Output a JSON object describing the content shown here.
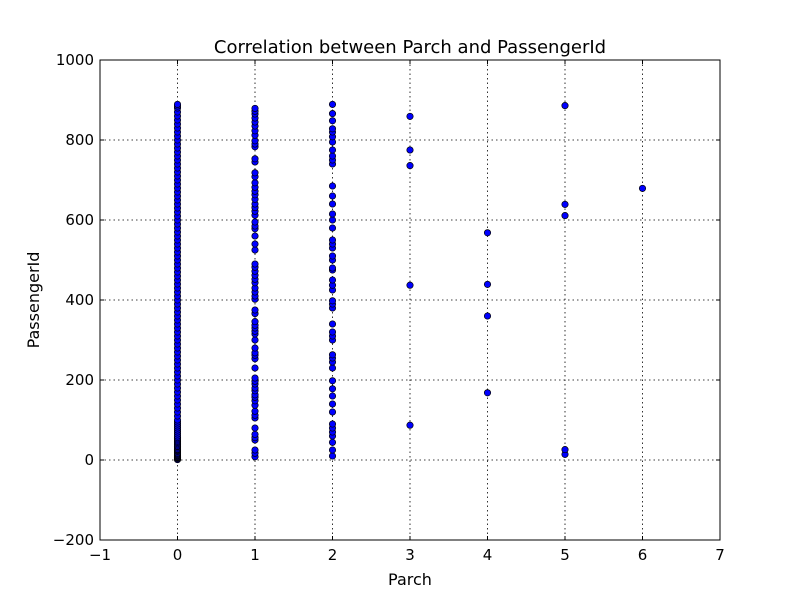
{
  "chart_data": {
    "type": "scatter",
    "title": "Correlation between Parch and PassengerId",
    "xlabel": "Parch",
    "ylabel": "PassengerId",
    "xlim": [
      -1,
      7
    ],
    "ylim": [
      -200,
      1000
    ],
    "xticks": [
      -1,
      0,
      1,
      2,
      3,
      4,
      5,
      6,
      7
    ],
    "yticks": [
      -200,
      0,
      200,
      400,
      600,
      800,
      1000
    ],
    "xtick_labels": [
      "−1",
      "0",
      "1",
      "2",
      "3",
      "4",
      "5",
      "6",
      "7"
    ],
    "ytick_labels": [
      "−200",
      "0",
      "200",
      "400",
      "600",
      "800",
      "1000"
    ],
    "grid": true,
    "marker_color": "#0000ff",
    "series": [
      {
        "points": [
          [
            0,
            1
          ],
          [
            0,
            3
          ],
          [
            0,
            5
          ],
          [
            0,
            6
          ],
          [
            0,
            7
          ],
          [
            0,
            8
          ],
          [
            0,
            10
          ],
          [
            0,
            12
          ],
          [
            0,
            14
          ],
          [
            0,
            16
          ],
          [
            0,
            18
          ],
          [
            0,
            21
          ],
          [
            0,
            23
          ],
          [
            0,
            25
          ],
          [
            0,
            27
          ],
          [
            0,
            30
          ],
          [
            0,
            33
          ],
          [
            0,
            35
          ],
          [
            0,
            38
          ],
          [
            0,
            41
          ],
          [
            0,
            44
          ],
          [
            0,
            47
          ],
          [
            0,
            50
          ],
          [
            0,
            53
          ],
          [
            0,
            56
          ],
          [
            0,
            60
          ],
          [
            0,
            65
          ],
          [
            0,
            70
          ],
          [
            0,
            75
          ],
          [
            0,
            80
          ],
          [
            0,
            85
          ],
          [
            0,
            90
          ],
          [
            0,
            95
          ],
          [
            0,
            100
          ],
          [
            0,
            110
          ],
          [
            0,
            120
          ],
          [
            0,
            130
          ],
          [
            0,
            140
          ],
          [
            0,
            150
          ],
          [
            0,
            160
          ],
          [
            0,
            170
          ],
          [
            0,
            180
          ],
          [
            0,
            190
          ],
          [
            0,
            200
          ],
          [
            0,
            210
          ],
          [
            0,
            220
          ],
          [
            0,
            230
          ],
          [
            0,
            240
          ],
          [
            0,
            250
          ],
          [
            0,
            260
          ],
          [
            0,
            270
          ],
          [
            0,
            280
          ],
          [
            0,
            290
          ],
          [
            0,
            300
          ],
          [
            0,
            310
          ],
          [
            0,
            320
          ],
          [
            0,
            330
          ],
          [
            0,
            340
          ],
          [
            0,
            350
          ],
          [
            0,
            360
          ],
          [
            0,
            370
          ],
          [
            0,
            380
          ],
          [
            0,
            390
          ],
          [
            0,
            400
          ],
          [
            0,
            410
          ],
          [
            0,
            420
          ],
          [
            0,
            430
          ],
          [
            0,
            440
          ],
          [
            0,
            450
          ],
          [
            0,
            460
          ],
          [
            0,
            470
          ],
          [
            0,
            480
          ],
          [
            0,
            490
          ],
          [
            0,
            500
          ],
          [
            0,
            510
          ],
          [
            0,
            520
          ],
          [
            0,
            530
          ],
          [
            0,
            540
          ],
          [
            0,
            550
          ],
          [
            0,
            560
          ],
          [
            0,
            570
          ],
          [
            0,
            580
          ],
          [
            0,
            590
          ],
          [
            0,
            600
          ],
          [
            0,
            610
          ],
          [
            0,
            620
          ],
          [
            0,
            630
          ],
          [
            0,
            640
          ],
          [
            0,
            650
          ],
          [
            0,
            660
          ],
          [
            0,
            670
          ],
          [
            0,
            680
          ],
          [
            0,
            690
          ],
          [
            0,
            700
          ],
          [
            0,
            710
          ],
          [
            0,
            720
          ],
          [
            0,
            730
          ],
          [
            0,
            740
          ],
          [
            0,
            750
          ],
          [
            0,
            760
          ],
          [
            0,
            770
          ],
          [
            0,
            780
          ],
          [
            0,
            790
          ],
          [
            0,
            800
          ],
          [
            0,
            810
          ],
          [
            0,
            820
          ],
          [
            0,
            830
          ],
          [
            0,
            840
          ],
          [
            0,
            850
          ],
          [
            0,
            860
          ],
          [
            0,
            870
          ],
          [
            0,
            880
          ],
          [
            0,
            885
          ],
          [
            0,
            889
          ],
          [
            1,
            8
          ],
          [
            1,
            17
          ],
          [
            1,
            25
          ],
          [
            1,
            50
          ],
          [
            1,
            56
          ],
          [
            1,
            64
          ],
          [
            1,
            80
          ],
          [
            1,
            105
          ],
          [
            1,
            112
          ],
          [
            1,
            122
          ],
          [
            1,
            137
          ],
          [
            1,
            148
          ],
          [
            1,
            157
          ],
          [
            1,
            163
          ],
          [
            1,
            173
          ],
          [
            1,
            180
          ],
          [
            1,
            190
          ],
          [
            1,
            197
          ],
          [
            1,
            205
          ],
          [
            1,
            230
          ],
          [
            1,
            253
          ],
          [
            1,
            262
          ],
          [
            1,
            268
          ],
          [
            1,
            280
          ],
          [
            1,
            300
          ],
          [
            1,
            315
          ],
          [
            1,
            322
          ],
          [
            1,
            330
          ],
          [
            1,
            337
          ],
          [
            1,
            346
          ],
          [
            1,
            366
          ],
          [
            1,
            375
          ],
          [
            1,
            402
          ],
          [
            1,
            410
          ],
          [
            1,
            420
          ],
          [
            1,
            430
          ],
          [
            1,
            443
          ],
          [
            1,
            452
          ],
          [
            1,
            462
          ],
          [
            1,
            472
          ],
          [
            1,
            482
          ],
          [
            1,
            490
          ],
          [
            1,
            525
          ],
          [
            1,
            540
          ],
          [
            1,
            560
          ],
          [
            1,
            578
          ],
          [
            1,
            585
          ],
          [
            1,
            595
          ],
          [
            1,
            612
          ],
          [
            1,
            622
          ],
          [
            1,
            631
          ],
          [
            1,
            640
          ],
          [
            1,
            652
          ],
          [
            1,
            663
          ],
          [
            1,
            672
          ],
          [
            1,
            682
          ],
          [
            1,
            693
          ],
          [
            1,
            708
          ],
          [
            1,
            718
          ],
          [
            1,
            745
          ],
          [
            1,
            753
          ],
          [
            1,
            783
          ],
          [
            1,
            790
          ],
          [
            1,
            798
          ],
          [
            1,
            812
          ],
          [
            1,
            823
          ],
          [
            1,
            835
          ],
          [
            1,
            845
          ],
          [
            1,
            855
          ],
          [
            1,
            865
          ],
          [
            1,
            872
          ],
          [
            1,
            879
          ],
          [
            2,
            10
          ],
          [
            2,
            25
          ],
          [
            2,
            44
          ],
          [
            2,
            60
          ],
          [
            2,
            70
          ],
          [
            2,
            80
          ],
          [
            2,
            90
          ],
          [
            2,
            120
          ],
          [
            2,
            140
          ],
          [
            2,
            160
          ],
          [
            2,
            178
          ],
          [
            2,
            198
          ],
          [
            2,
            230
          ],
          [
            2,
            245
          ],
          [
            2,
            255
          ],
          [
            2,
            263
          ],
          [
            2,
            300
          ],
          [
            2,
            310
          ],
          [
            2,
            320
          ],
          [
            2,
            340
          ],
          [
            2,
            380
          ],
          [
            2,
            390
          ],
          [
            2,
            398
          ],
          [
            2,
            425
          ],
          [
            2,
            437
          ],
          [
            2,
            450
          ],
          [
            2,
            475
          ],
          [
            2,
            480
          ],
          [
            2,
            500
          ],
          [
            2,
            510
          ],
          [
            2,
            530
          ],
          [
            2,
            540
          ],
          [
            2,
            550
          ],
          [
            2,
            580
          ],
          [
            2,
            600
          ],
          [
            2,
            615
          ],
          [
            2,
            640
          ],
          [
            2,
            660
          ],
          [
            2,
            685
          ],
          [
            2,
            740
          ],
          [
            2,
            750
          ],
          [
            2,
            760
          ],
          [
            2,
            775
          ],
          [
            2,
            795
          ],
          [
            2,
            808
          ],
          [
            2,
            820
          ],
          [
            2,
            828
          ],
          [
            2,
            848
          ],
          [
            2,
            866
          ],
          [
            2,
            889
          ],
          [
            3,
            87
          ],
          [
            3,
            437
          ],
          [
            3,
            736
          ],
          [
            3,
            775
          ],
          [
            3,
            859
          ],
          [
            4,
            168
          ],
          [
            4,
            360
          ],
          [
            4,
            439
          ],
          [
            4,
            568
          ],
          [
            5,
            14
          ],
          [
            5,
            26
          ],
          [
            5,
            611
          ],
          [
            5,
            639
          ],
          [
            5,
            886
          ],
          [
            6,
            679
          ]
        ]
      }
    ]
  }
}
